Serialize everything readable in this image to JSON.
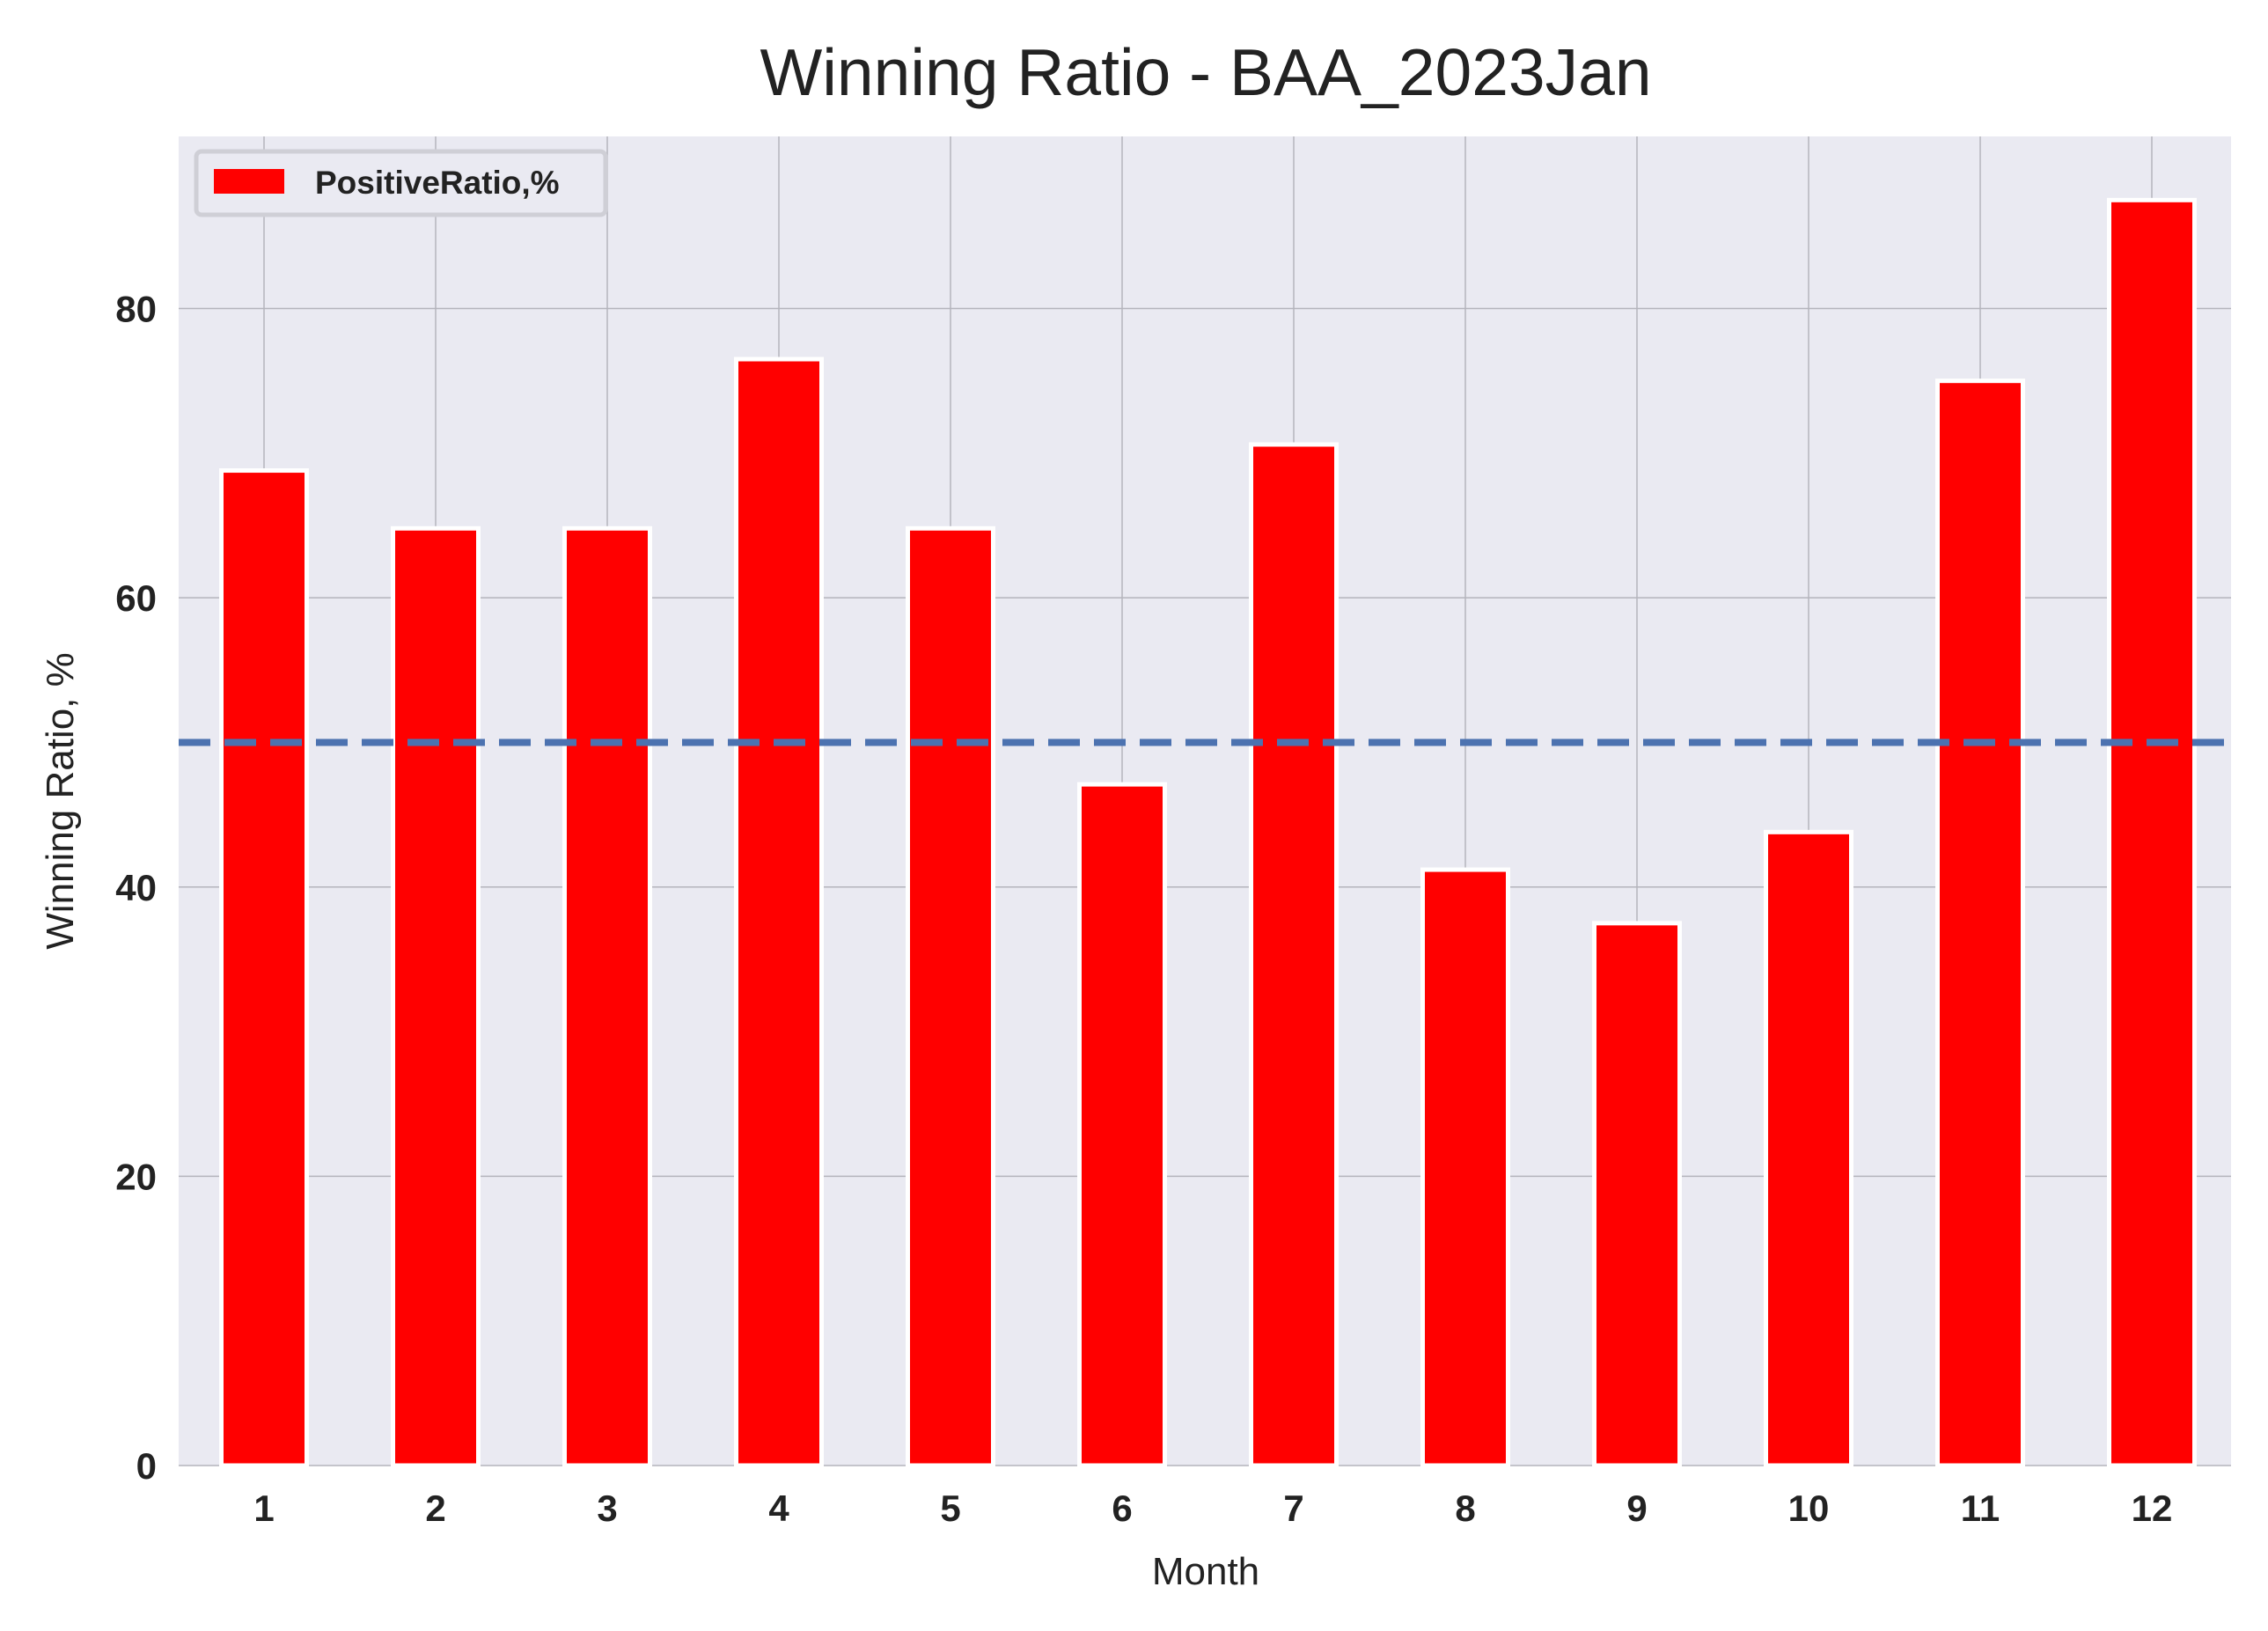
{
  "chart_data": {
    "type": "bar",
    "title": "Winning Ratio - BAA_2023Jan",
    "xlabel": "Month",
    "ylabel": "Winning Ratio, %",
    "categories": [
      "1",
      "2",
      "3",
      "4",
      "5",
      "6",
      "7",
      "8",
      "9",
      "10",
      "11",
      "12"
    ],
    "series": [
      {
        "name": "PositiveRatio,%",
        "color": "#ff0000",
        "values": [
          68.8,
          64.8,
          64.8,
          76.5,
          64.8,
          47.1,
          70.6,
          41.2,
          37.5,
          43.8,
          75.0,
          87.5
        ]
      }
    ],
    "reference_line": {
      "y": 50,
      "style": "dashed",
      "color": "#4c72b0"
    },
    "yticks": [
      "0",
      "20",
      "40",
      "60",
      "80"
    ],
    "ylim": [
      0,
      91.9
    ],
    "grid": true,
    "background": "#eaeaf2",
    "legend_position": "top-left"
  }
}
